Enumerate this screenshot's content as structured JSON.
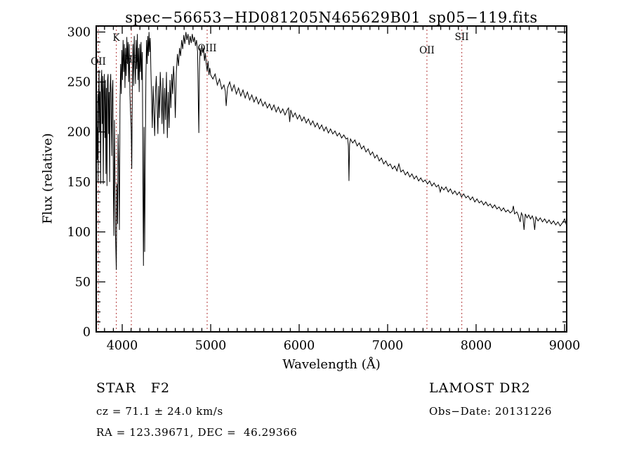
{
  "header": {
    "title": "spec−56653−HD081205N465629B01_sp05−119.fits"
  },
  "chart_data": {
    "type": "line",
    "title": "spec−56653−HD081205N465629B01_sp05−119.fits",
    "xlabel": "Wavelength (Å)",
    "ylabel": "Flux (relative)",
    "xlim": [
      3706,
      9024
    ],
    "ylim": [
      0,
      306
    ],
    "grid": false,
    "x_ticks": [
      4000,
      5000,
      6000,
      7000,
      8000,
      9000
    ],
    "x_minor_step": 100,
    "y_ticks": [
      0,
      50,
      100,
      150,
      200,
      250,
      300
    ],
    "y_minor_step": 10,
    "line_color": "#000000",
    "reference_line_color": "#aa2222",
    "reference_lines": [
      {
        "label": "OII",
        "wavelength": 3730,
        "label_y": 92
      },
      {
        "label": "K",
        "wavelength": 3933,
        "label_y": 58
      },
      {
        "label": "Hδ",
        "wavelength": 4103,
        "label_y": 89
      },
      {
        "label": "OIII",
        "wavelength": 4960,
        "label_y": 73
      },
      {
        "label": "OII",
        "wavelength": 7444,
        "label_y": 76
      },
      {
        "label": "SII",
        "wavelength": 7838,
        "label_y": 57
      }
    ],
    "flux_points": [
      [
        3706,
        155
      ],
      [
        3712,
        205
      ],
      [
        3718,
        172
      ],
      [
        3724,
        238
      ],
      [
        3727,
        150
      ],
      [
        3732,
        228
      ],
      [
        3738,
        262
      ],
      [
        3744,
        200
      ],
      [
        3750,
        240
      ],
      [
        3756,
        148
      ],
      [
        3762,
        250
      ],
      [
        3768,
        262
      ],
      [
        3774,
        208
      ],
      [
        3780,
        256
      ],
      [
        3786,
        148
      ],
      [
        3792,
        242
      ],
      [
        3798,
        258
      ],
      [
        3804,
        194
      ],
      [
        3810,
        252
      ],
      [
        3816,
        158
      ],
      [
        3822,
        244
      ],
      [
        3828,
        146
      ],
      [
        3834,
        252
      ],
      [
        3840,
        258
      ],
      [
        3846,
        198
      ],
      [
        3852,
        240
      ],
      [
        3858,
        150
      ],
      [
        3864,
        246
      ],
      [
        3870,
        258
      ],
      [
        3876,
        212
      ],
      [
        3882,
        176
      ],
      [
        3888,
        242
      ],
      [
        3894,
        252
      ],
      [
        3900,
        140
      ],
      [
        3906,
        96
      ],
      [
        3912,
        212
      ],
      [
        3918,
        158
      ],
      [
        3924,
        98
      ],
      [
        3933,
        62
      ],
      [
        3940,
        148
      ],
      [
        3947,
        108
      ],
      [
        3954,
        198
      ],
      [
        3961,
        165
      ],
      [
        3968,
        102
      ],
      [
        3975,
        228
      ],
      [
        3982,
        268
      ],
      [
        3989,
        238
      ],
      [
        3996,
        282
      ],
      [
        4003,
        252
      ],
      [
        4010,
        292
      ],
      [
        4017,
        260
      ],
      [
        4024,
        288
      ],
      [
        4031,
        244
      ],
      [
        4038,
        284
      ],
      [
        4045,
        256
      ],
      [
        4052,
        295
      ],
      [
        4059,
        268
      ],
      [
        4066,
        290
      ],
      [
        4073,
        250
      ],
      [
        4080,
        288
      ],
      [
        4087,
        238
      ],
      [
        4094,
        220
      ],
      [
        4101,
        205
      ],
      [
        4108,
        163
      ],
      [
        4115,
        256
      ],
      [
        4122,
        288
      ],
      [
        4129,
        246
      ],
      [
        4136,
        296
      ],
      [
        4143,
        268
      ],
      [
        4150,
        248
      ],
      [
        4157,
        292
      ],
      [
        4164,
        263
      ],
      [
        4171,
        298
      ],
      [
        4178,
        252
      ],
      [
        4185,
        284
      ],
      [
        4192,
        240
      ],
      [
        4199,
        288
      ],
      [
        4206,
        260
      ],
      [
        4213,
        290
      ],
      [
        4220,
        252
      ],
      [
        4227,
        280
      ],
      [
        4234,
        148
      ],
      [
        4240,
        66
      ],
      [
        4247,
        205
      ],
      [
        4254,
        80
      ],
      [
        4261,
        178
      ],
      [
        4268,
        256
      ],
      [
        4275,
        292
      ],
      [
        4282,
        268
      ],
      [
        4289,
        296
      ],
      [
        4296,
        276
      ],
      [
        4303,
        300
      ],
      [
        4310,
        280
      ],
      [
        4317,
        294
      ],
      [
        4324,
        262
      ],
      [
        4331,
        238
      ],
      [
        4340,
        204
      ],
      [
        4349,
        246
      ],
      [
        4358,
        222
      ],
      [
        4367,
        196
      ],
      [
        4376,
        240
      ],
      [
        4385,
        256
      ],
      [
        4394,
        228
      ],
      [
        4403,
        198
      ],
      [
        4412,
        246
      ],
      [
        4421,
        214
      ],
      [
        4430,
        260
      ],
      [
        4440,
        238
      ],
      [
        4450,
        208
      ],
      [
        4460,
        254
      ],
      [
        4470,
        198
      ],
      [
        4480,
        244
      ],
      [
        4490,
        212
      ],
      [
        4500,
        260
      ],
      [
        4510,
        194
      ],
      [
        4520,
        240
      ],
      [
        4530,
        204
      ],
      [
        4540,
        252
      ],
      [
        4550,
        224
      ],
      [
        4560,
        258
      ],
      [
        4570,
        238
      ],
      [
        4580,
        266
      ],
      [
        4590,
        250
      ],
      [
        4600,
        214
      ],
      [
        4612,
        260
      ],
      [
        4624,
        278
      ],
      [
        4636,
        266
      ],
      [
        4648,
        284
      ],
      [
        4660,
        276
      ],
      [
        4672,
        292
      ],
      [
        4684,
        283
      ],
      [
        4696,
        297
      ],
      [
        4708,
        288
      ],
      [
        4720,
        300
      ],
      [
        4732,
        292
      ],
      [
        4744,
        298
      ],
      [
        4756,
        287
      ],
      [
        4768,
        296
      ],
      [
        4780,
        289
      ],
      [
        4792,
        298
      ],
      [
        4804,
        290
      ],
      [
        4816,
        295
      ],
      [
        4828,
        286
      ],
      [
        4840,
        292
      ],
      [
        4852,
        280
      ],
      [
        4861,
        224
      ],
      [
        4866,
        199
      ],
      [
        4872,
        260
      ],
      [
        4880,
        284
      ],
      [
        4890,
        276
      ],
      [
        4900,
        287
      ],
      [
        4910,
        279
      ],
      [
        4920,
        284
      ],
      [
        4930,
        271
      ],
      [
        4940,
        279
      ],
      [
        4950,
        268
      ],
      [
        4960,
        261
      ],
      [
        4970,
        271
      ],
      [
        4980,
        257
      ],
      [
        4990,
        264
      ],
      [
        5000,
        257
      ],
      [
        5025,
        253
      ],
      [
        5050,
        258
      ],
      [
        5075,
        247
      ],
      [
        5100,
        253
      ],
      [
        5125,
        243
      ],
      [
        5150,
        247
      ],
      [
        5165,
        241
      ],
      [
        5175,
        226
      ],
      [
        5190,
        244
      ],
      [
        5215,
        250
      ],
      [
        5240,
        241
      ],
      [
        5265,
        247
      ],
      [
        5290,
        238
      ],
      [
        5315,
        244
      ],
      [
        5340,
        236
      ],
      [
        5365,
        242
      ],
      [
        5390,
        234
      ],
      [
        5415,
        240
      ],
      [
        5440,
        232
      ],
      [
        5465,
        237
      ],
      [
        5490,
        230
      ],
      [
        5515,
        235
      ],
      [
        5540,
        228
      ],
      [
        5565,
        233
      ],
      [
        5590,
        226
      ],
      [
        5615,
        230
      ],
      [
        5640,
        224
      ],
      [
        5665,
        228
      ],
      [
        5690,
        222
      ],
      [
        5715,
        227
      ],
      [
        5740,
        220
      ],
      [
        5765,
        225
      ],
      [
        5790,
        219
      ],
      [
        5815,
        223
      ],
      [
        5840,
        217
      ],
      [
        5865,
        222
      ],
      [
        5880,
        224
      ],
      [
        5893,
        210
      ],
      [
        5905,
        222
      ],
      [
        5930,
        215
      ],
      [
        5955,
        219
      ],
      [
        5980,
        213
      ],
      [
        6005,
        217
      ],
      [
        6030,
        211
      ],
      [
        6055,
        215
      ],
      [
        6080,
        209
      ],
      [
        6105,
        213
      ],
      [
        6130,
        207
      ],
      [
        6155,
        211
      ],
      [
        6180,
        205
      ],
      [
        6205,
        209
      ],
      [
        6230,
        203
      ],
      [
        6255,
        207
      ],
      [
        6280,
        201
      ],
      [
        6305,
        205
      ],
      [
        6330,
        199
      ],
      [
        6355,
        203
      ],
      [
        6380,
        198
      ],
      [
        6405,
        201
      ],
      [
        6430,
        196
      ],
      [
        6455,
        199
      ],
      [
        6480,
        194
      ],
      [
        6505,
        197
      ],
      [
        6530,
        193
      ],
      [
        6548,
        194
      ],
      [
        6556,
        186
      ],
      [
        6563,
        151
      ],
      [
        6570,
        188
      ],
      [
        6580,
        193
      ],
      [
        6605,
        189
      ],
      [
        6630,
        192
      ],
      [
        6655,
        186
      ],
      [
        6680,
        189
      ],
      [
        6705,
        183
      ],
      [
        6730,
        186
      ],
      [
        6755,
        180
      ],
      [
        6780,
        183
      ],
      [
        6805,
        177
      ],
      [
        6830,
        180
      ],
      [
        6855,
        174
      ],
      [
        6880,
        177
      ],
      [
        6905,
        171
      ],
      [
        6930,
        174
      ],
      [
        6955,
        168
      ],
      [
        6980,
        171
      ],
      [
        7005,
        166
      ],
      [
        7030,
        168
      ],
      [
        7055,
        163
      ],
      [
        7080,
        166
      ],
      [
        7105,
        161
      ],
      [
        7127,
        168
      ],
      [
        7150,
        160
      ],
      [
        7175,
        162
      ],
      [
        7200,
        157
      ],
      [
        7225,
        160
      ],
      [
        7250,
        155
      ],
      [
        7275,
        158
      ],
      [
        7300,
        153
      ],
      [
        7325,
        156
      ],
      [
        7350,
        151
      ],
      [
        7375,
        154
      ],
      [
        7400,
        150
      ],
      [
        7425,
        152
      ],
      [
        7450,
        148
      ],
      [
        7475,
        151
      ],
      [
        7500,
        146
      ],
      [
        7525,
        149
      ],
      [
        7550,
        145
      ],
      [
        7575,
        147
      ],
      [
        7595,
        140
      ],
      [
        7610,
        145
      ],
      [
        7635,
        142
      ],
      [
        7660,
        145
      ],
      [
        7685,
        140
      ],
      [
        7710,
        143
      ],
      [
        7735,
        138
      ],
      [
        7760,
        141
      ],
      [
        7785,
        137
      ],
      [
        7810,
        140
      ],
      [
        7835,
        135
      ],
      [
        7860,
        138
      ],
      [
        7885,
        134
      ],
      [
        7910,
        136
      ],
      [
        7935,
        132
      ],
      [
        7960,
        135
      ],
      [
        7985,
        130
      ],
      [
        8010,
        133
      ],
      [
        8035,
        129
      ],
      [
        8060,
        131
      ],
      [
        8085,
        127
      ],
      [
        8110,
        130
      ],
      [
        8135,
        126
      ],
      [
        8160,
        128
      ],
      [
        8185,
        124
      ],
      [
        8210,
        127
      ],
      [
        8235,
        123
      ],
      [
        8260,
        125
      ],
      [
        8285,
        121
      ],
      [
        8310,
        124
      ],
      [
        8335,
        120
      ],
      [
        8360,
        122
      ],
      [
        8385,
        119
      ],
      [
        8410,
        121
      ],
      [
        8421,
        126
      ],
      [
        8435,
        118
      ],
      [
        8460,
        120
      ],
      [
        8475,
        117
      ],
      [
        8498,
        110
      ],
      [
        8512,
        119
      ],
      [
        8528,
        116
      ],
      [
        8542,
        102
      ],
      [
        8556,
        118
      ],
      [
        8575,
        114
      ],
      [
        8595,
        117
      ],
      [
        8615,
        113
      ],
      [
        8635,
        116
      ],
      [
        8650,
        112
      ],
      [
        8662,
        102
      ],
      [
        8676,
        115
      ],
      [
        8700,
        111
      ],
      [
        8725,
        114
      ],
      [
        8750,
        110
      ],
      [
        8775,
        113
      ],
      [
        8800,
        109
      ],
      [
        8825,
        112
      ],
      [
        8850,
        108
      ],
      [
        8875,
        111
      ],
      [
        8900,
        107
      ],
      [
        8925,
        110
      ],
      [
        8950,
        106
      ],
      [
        8975,
        109
      ],
      [
        9000,
        113
      ],
      [
        9020,
        107
      ]
    ]
  },
  "annotations": {
    "class_type": "STAR   F2",
    "survey": "LAMOST DR2",
    "cz": "cz = 71.1 ± 24.0 km/s",
    "obs_date": "Obs−Date: 20131226",
    "coords": "RA = 123.39671, DEC =  46.29366"
  }
}
